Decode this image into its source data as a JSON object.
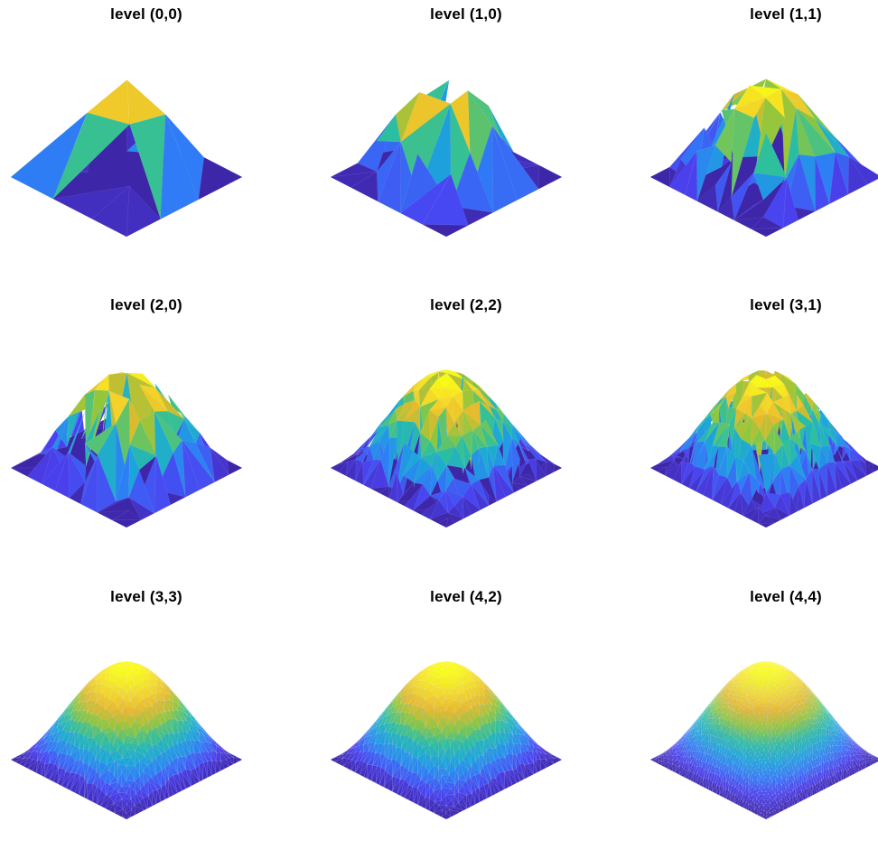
{
  "chart_data": [
    {
      "type": "surface",
      "title": "level (0,0)",
      "level": [
        0,
        0
      ]
    },
    {
      "type": "surface",
      "title": "level (1,0)",
      "level": [
        1,
        0
      ]
    },
    {
      "type": "surface",
      "title": "level (1,1)",
      "level": [
        1,
        1
      ]
    },
    {
      "type": "surface",
      "title": "level (2,0)",
      "level": [
        2,
        0
      ]
    },
    {
      "type": "surface",
      "title": "level (2,2)",
      "level": [
        2,
        2
      ]
    },
    {
      "type": "surface",
      "title": "level (3,1)",
      "level": [
        3,
        1
      ]
    },
    {
      "type": "surface",
      "title": "level (3,3)",
      "level": [
        3,
        3
      ]
    },
    {
      "type": "surface",
      "title": "level (4,2)",
      "level": [
        4,
        2
      ]
    },
    {
      "type": "surface",
      "title": "level (4,4)",
      "level": [
        4,
        4
      ]
    }
  ],
  "colormap": [
    "#3e26a8",
    "#4a42f0",
    "#2f7cf6",
    "#1ba7d9",
    "#2dbf9e",
    "#8fc73c",
    "#e6b92c",
    "#f6d828",
    "#f9fb15"
  ],
  "grid_lines": false,
  "axes_visible": false
}
